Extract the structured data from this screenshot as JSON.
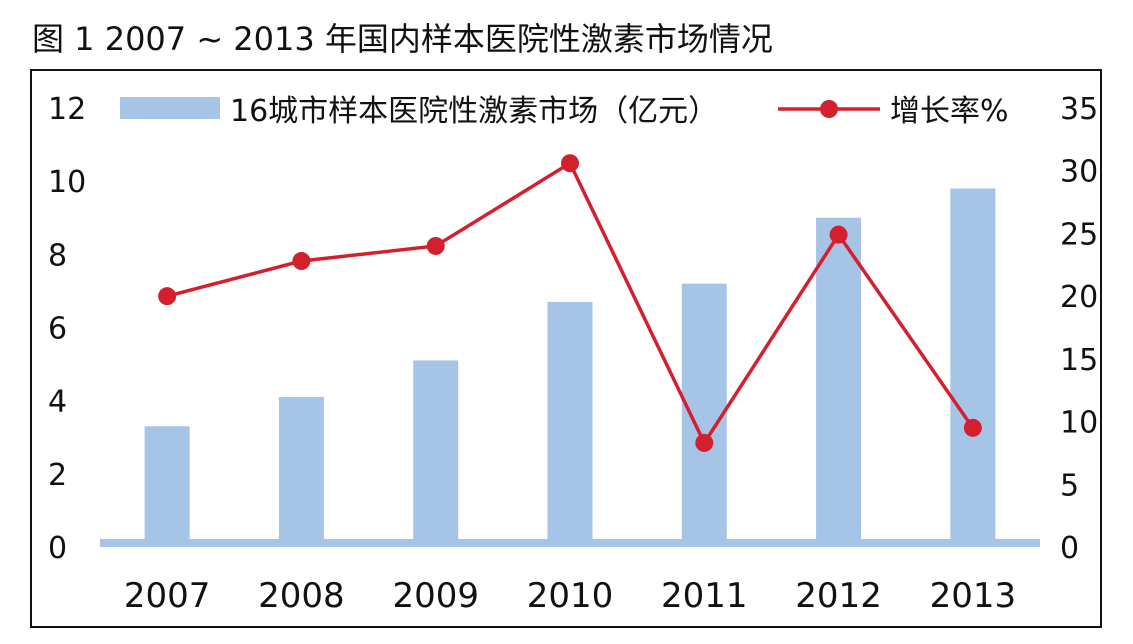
{
  "figure_title": "图 1  2007 ~ 2013 年国内样本医院性激素市场情况",
  "chart_data": {
    "type": "bar+line",
    "categories": [
      "2007",
      "2008",
      "2009",
      "2010",
      "2011",
      "2012",
      "2013"
    ],
    "series": [
      {
        "name": "16城市样本医院性激素市场（亿元）",
        "type": "bar",
        "axis": "left",
        "values": [
          3.3,
          4.1,
          5.1,
          6.7,
          7.2,
          9.0,
          9.8
        ]
      },
      {
        "name": "增长率%",
        "type": "line",
        "axis": "right",
        "values": [
          20.0,
          22.8,
          24.0,
          30.6,
          8.3,
          24.9,
          9.5
        ]
      }
    ],
    "left_axis": {
      "ylim": [
        0,
        12
      ],
      "ticks": [
        "0",
        "2",
        "4",
        "6",
        "8",
        "10",
        "12"
      ]
    },
    "right_axis": {
      "ylim": [
        0,
        35
      ],
      "ticks": [
        "0",
        "5",
        "10",
        "15",
        "20",
        "25",
        "30",
        "35"
      ]
    },
    "legend_position": "top",
    "grid": false,
    "colors": {
      "bar": "#a6c4e6",
      "line": "#d4202e"
    }
  }
}
